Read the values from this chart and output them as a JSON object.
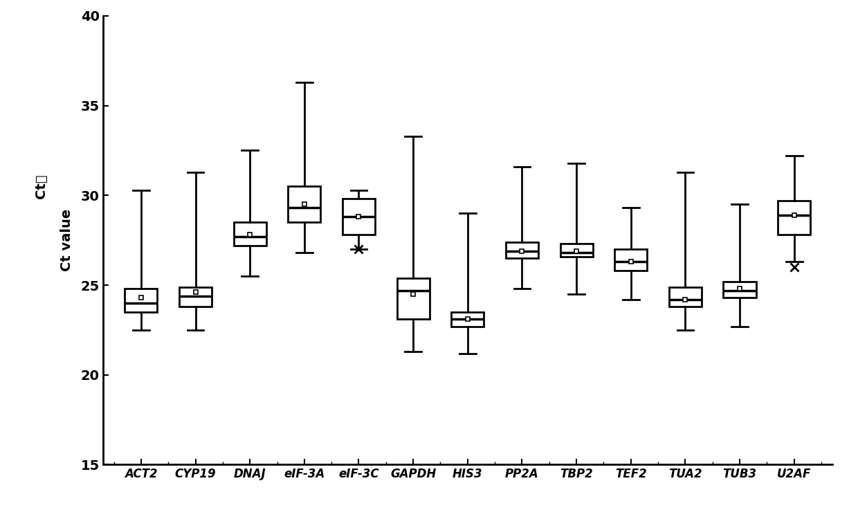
{
  "labels": [
    "ACT2",
    "CYP19",
    "DNAJ",
    "eIF-3A",
    "eIF-3C",
    "GAPDH",
    "HIS3",
    "PP2A",
    "TBP2",
    "TEF2",
    "TUA2",
    "TUB3",
    "U2AF"
  ],
  "boxes": [
    {
      "whislo": 22.5,
      "q1": 23.5,
      "med": 24.0,
      "q3": 24.8,
      "whishi": 30.3,
      "mean": 24.3
    },
    {
      "whislo": 22.5,
      "q1": 23.8,
      "med": 24.4,
      "q3": 24.9,
      "whishi": 31.3,
      "mean": 24.6
    },
    {
      "whislo": 25.5,
      "q1": 27.2,
      "med": 27.7,
      "q3": 28.5,
      "whishi": 32.5,
      "mean": 27.8
    },
    {
      "whislo": 26.8,
      "q1": 28.5,
      "med": 29.3,
      "q3": 30.5,
      "whishi": 36.3,
      "mean": 29.5
    },
    {
      "whislo": 27.0,
      "q1": 27.8,
      "med": 28.8,
      "q3": 29.8,
      "whishi": 30.3,
      "mean": 28.8
    },
    {
      "whislo": 21.3,
      "q1": 23.1,
      "med": 24.7,
      "q3": 25.4,
      "whishi": 33.3,
      "mean": 24.5
    },
    {
      "whislo": 21.2,
      "q1": 22.7,
      "med": 23.1,
      "q3": 23.5,
      "whishi": 29.0,
      "mean": 23.1
    },
    {
      "whislo": 24.8,
      "q1": 26.5,
      "med": 26.9,
      "q3": 27.4,
      "whishi": 31.6,
      "mean": 26.9
    },
    {
      "whislo": 24.5,
      "q1": 26.6,
      "med": 26.8,
      "q3": 27.3,
      "whishi": 31.8,
      "mean": 26.9
    },
    {
      "whislo": 24.2,
      "q1": 25.8,
      "med": 26.3,
      "q3": 27.0,
      "whishi": 29.3,
      "mean": 26.3
    },
    {
      "whislo": 22.5,
      "q1": 23.8,
      "med": 24.2,
      "q3": 24.9,
      "whishi": 31.3,
      "mean": 24.2
    },
    {
      "whislo": 22.7,
      "q1": 24.3,
      "med": 24.7,
      "q3": 25.2,
      "whishi": 29.5,
      "mean": 24.8
    },
    {
      "whislo": 26.3,
      "q1": 27.8,
      "med": 28.9,
      "q3": 29.7,
      "whishi": 32.2,
      "mean": 28.9
    }
  ],
  "fliers": [
    [],
    [],
    [],
    [],
    [
      27.0
    ],
    [],
    [],
    [],
    [],
    [],
    [],
    [],
    [
      26.0
    ]
  ],
  "ylim": [
    15,
    40
  ],
  "yticks": [
    15,
    20,
    25,
    30,
    35,
    40
  ],
  "ylabel_cn": "Ct値",
  "ylabel_en": "Ct value",
  "background_color": "#ffffff"
}
